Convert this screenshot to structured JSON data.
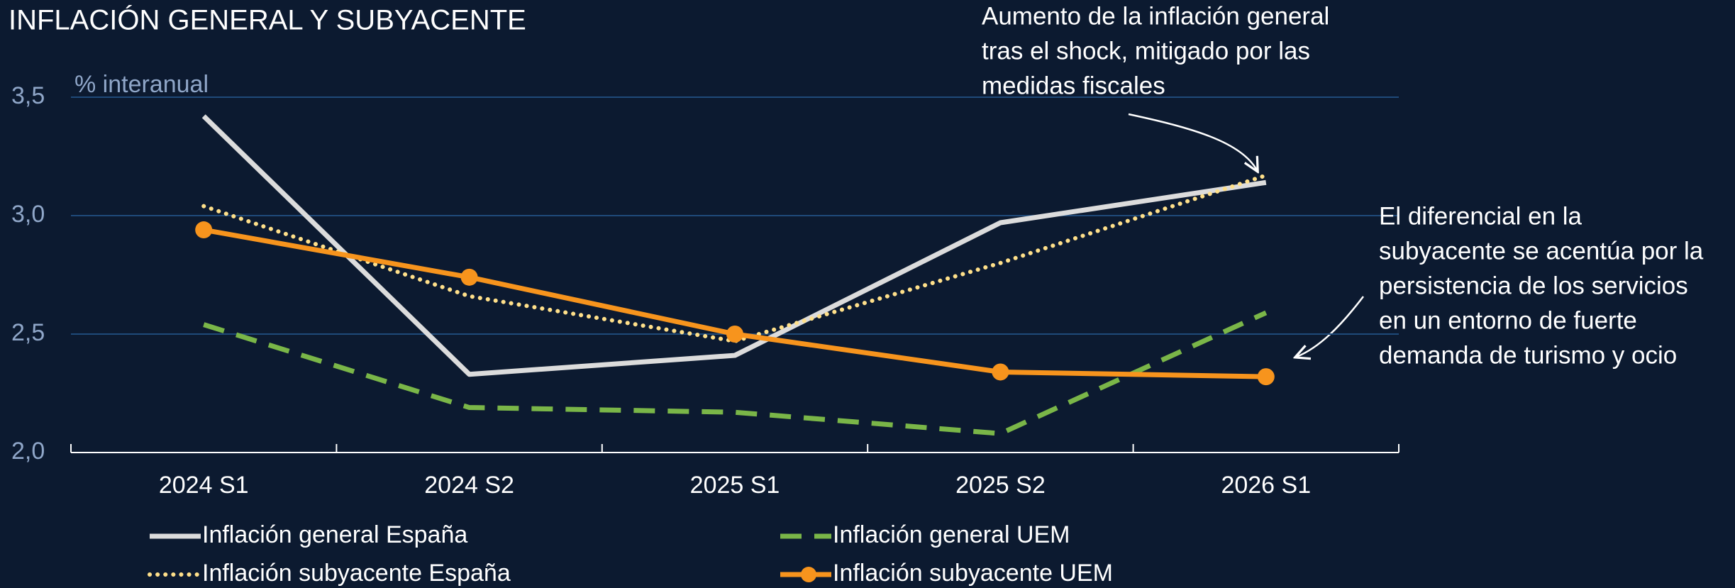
{
  "chart_data": {
    "type": "line",
    "title": "INFLACIÓN GENERAL Y SUBYACENTE",
    "y_axis_label": "% interanual",
    "categories": [
      "2024 S1",
      "2024 S2",
      "2025 S1",
      "2025 S2",
      "2026 S1"
    ],
    "ylim": [
      2.0,
      3.5
    ],
    "yticks": [
      {
        "value": 2.0,
        "label": "2,0"
      },
      {
        "value": 2.5,
        "label": "2,5"
      },
      {
        "value": 3.0,
        "label": "3,0"
      },
      {
        "value": 3.5,
        "label": "3,5"
      }
    ],
    "grid": true,
    "series": [
      {
        "name": "Inflación general España",
        "color": "#dcdcdc",
        "style": "solid",
        "values": [
          3.42,
          2.33,
          2.41,
          2.97,
          3.14
        ]
      },
      {
        "name": "Inflación general UEM",
        "color": "#7ab648",
        "style": "dashed",
        "values": [
          2.54,
          2.19,
          2.17,
          2.08,
          2.59
        ]
      },
      {
        "name": "Inflación subyacente España",
        "color": "#ffe08a",
        "style": "dotted",
        "values": [
          3.04,
          2.66,
          2.47,
          2.8,
          3.17
        ]
      },
      {
        "name": "Inflación subyacente UEM",
        "color": "#f7941d",
        "style": "solid",
        "markers": true,
        "values": [
          2.94,
          2.74,
          2.5,
          2.34,
          2.32
        ]
      }
    ],
    "annotations": [
      [
        "Aumento de la inflación general",
        "tras el shock, mitigado por las",
        "medidas fiscales"
      ],
      [
        "El diferencial en la",
        "subyacente se acentúa por la",
        "persistencia de los servicios",
        "en un entorno de fuerte",
        "demanda de turismo y ocio"
      ]
    ]
  }
}
